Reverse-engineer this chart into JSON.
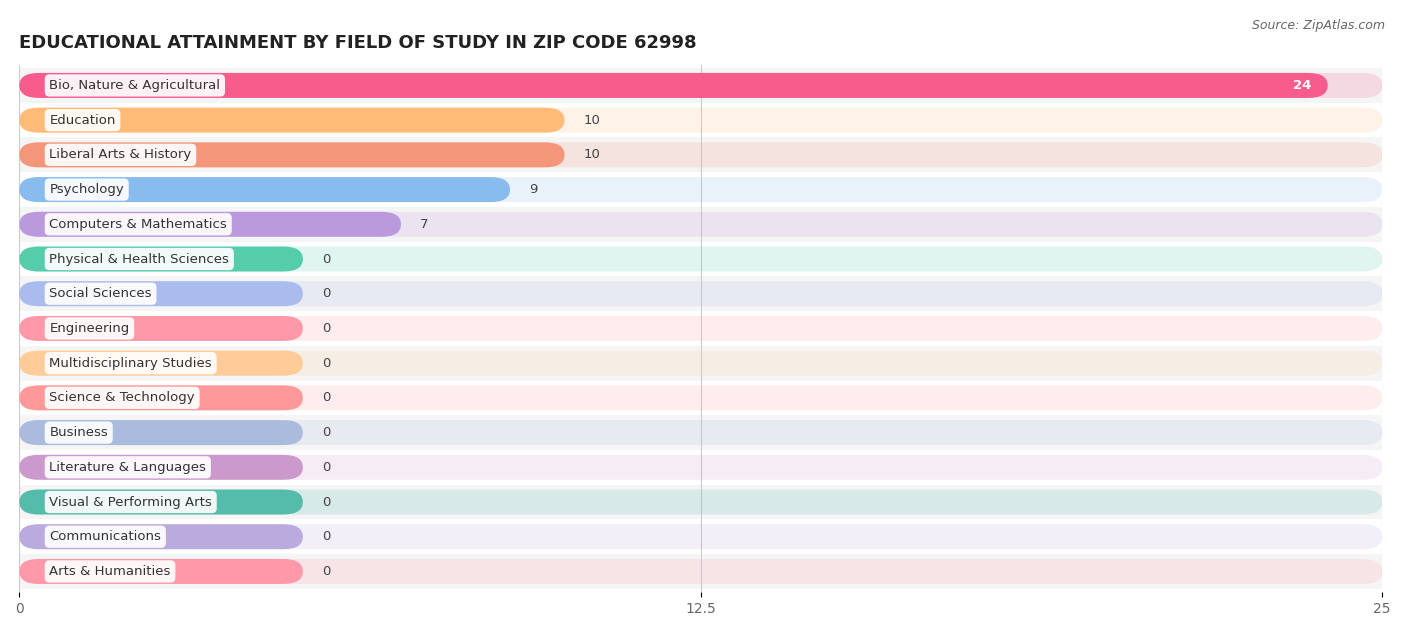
{
  "title": "EDUCATIONAL ATTAINMENT BY FIELD OF STUDY IN ZIP CODE 62998",
  "source": "Source: ZipAtlas.com",
  "categories": [
    "Bio, Nature & Agricultural",
    "Education",
    "Liberal Arts & History",
    "Psychology",
    "Computers & Mathematics",
    "Physical & Health Sciences",
    "Social Sciences",
    "Engineering",
    "Multidisciplinary Studies",
    "Science & Technology",
    "Business",
    "Literature & Languages",
    "Visual & Performing Arts",
    "Communications",
    "Arts & Humanities"
  ],
  "values": [
    24,
    10,
    10,
    9,
    7,
    0,
    0,
    0,
    0,
    0,
    0,
    0,
    0,
    0,
    0
  ],
  "bar_colors": [
    "#F75C8D",
    "#FFBB77",
    "#F4967A",
    "#88BBEE",
    "#BB99DD",
    "#55CCAA",
    "#AABBEE",
    "#FF99AA",
    "#FFCC99",
    "#FF9999",
    "#AABBDD",
    "#CC99CC",
    "#55BBAA",
    "#BBAADD",
    "#FF99AA"
  ],
  "xlim": [
    0,
    25
  ],
  "xticks": [
    0,
    12.5,
    25
  ],
  "background_color": "#ffffff",
  "row_color_odd": "#F5F5F5",
  "row_color_even": "#FFFFFF",
  "title_fontsize": 13,
  "label_fontsize": 9.5,
  "value_fontsize": 9.5,
  "bar_height": 0.72,
  "zero_bar_width": 5.2
}
